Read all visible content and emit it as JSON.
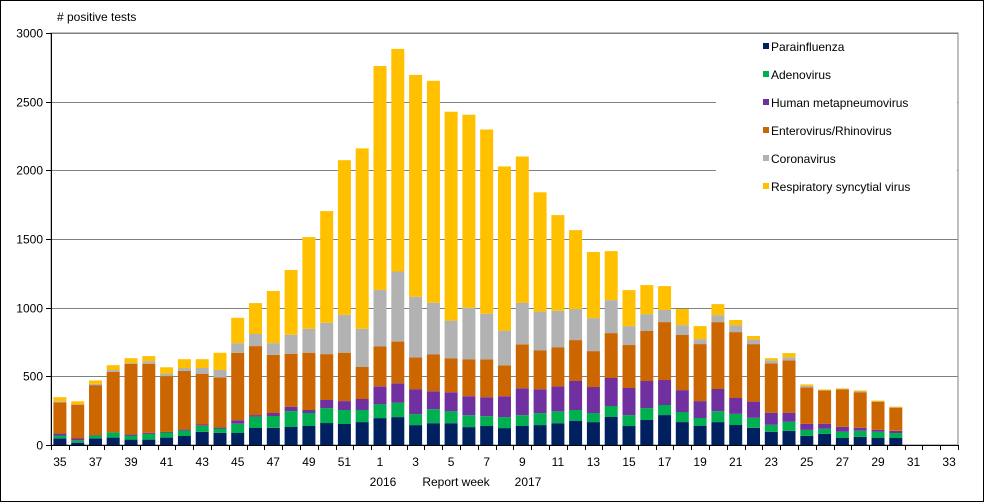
{
  "chart_data": {
    "type": "bar",
    "stacked": true,
    "ylabel": "# positive tests",
    "xlabel": "Report week",
    "year_labels": [
      "2016",
      "2017"
    ],
    "ylim": [
      0,
      3000
    ],
    "yticks": [
      0,
      500,
      1000,
      1500,
      2000,
      2500,
      3000
    ],
    "grid": true,
    "legend_position": "top-right",
    "categories": [
      "35",
      "36",
      "37",
      "38",
      "39",
      "40",
      "41",
      "42",
      "43",
      "44",
      "45",
      "46",
      "47",
      "48",
      "49",
      "50",
      "51",
      "52",
      "1",
      "2",
      "3",
      "4",
      "5",
      "6",
      "7",
      "8",
      "9",
      "10",
      "11",
      "12",
      "13",
      "14",
      "15",
      "16",
      "17",
      "18",
      "19",
      "20",
      "21",
      "22",
      "23",
      "24",
      "25",
      "26",
      "27",
      "28",
      "29",
      "30",
      "31",
      "32",
      "33"
    ],
    "xtick_labels": [
      "35",
      "37",
      "39",
      "41",
      "43",
      "45",
      "47",
      "49",
      "51",
      "1",
      "3",
      "5",
      "7",
      "9",
      "11",
      "13",
      "15",
      "17",
      "19",
      "21",
      "23",
      "25",
      "27",
      "29",
      "31",
      "33"
    ],
    "series": [
      {
        "name": "Parainfluenza",
        "color": "#002060",
        "values": [
          49,
          17,
          49,
          54,
          39,
          39,
          54,
          66,
          96,
          88,
          88,
          124,
          124,
          131,
          138,
          160,
          153,
          167,
          196,
          203,
          145,
          159,
          159,
          130,
          138,
          123,
          138,
          145,
          159,
          175,
          167,
          204,
          138,
          182,
          218,
          167,
          138,
          167,
          146,
          125,
          96,
          103,
          66,
          81,
          51,
          59,
          51,
          51,
          0,
          0,
          0
        ]
      },
      {
        "name": "Adenovirus",
        "color": "#00B050",
        "values": [
          20,
          17,
          20,
          37,
          30,
          42,
          37,
          39,
          44,
          32,
          66,
          82,
          87,
          116,
          95,
          109,
          102,
          88,
          101,
          104,
          80,
          102,
          87,
          87,
          72,
          80,
          79,
          87,
          87,
          80,
          66,
          80,
          80,
          87,
          73,
          73,
          59,
          80,
          80,
          73,
          51,
          66,
          44,
          37,
          45,
          44,
          45,
          37,
          0,
          0,
          0
        ]
      },
      {
        "name": "Human metapneumovirus",
        "color": "#7030A0",
        "values": [
          14,
          13,
          3,
          2,
          7,
          7,
          5,
          7,
          9,
          7,
          25,
          12,
          22,
          32,
          22,
          59,
          65,
          80,
          130,
          142,
          181,
          130,
          138,
          138,
          138,
          152,
          196,
          174,
          181,
          211,
          189,
          204,
          197,
          197,
          182,
          160,
          123,
          161,
          116,
          118,
          88,
          66,
          44,
          36,
          36,
          22,
          14,
          15,
          0,
          0,
          0
        ]
      },
      {
        "name": "Enterovirus/Rhinovirus",
        "color": "#CC6600",
        "values": [
          228,
          247,
          364,
          439,
          515,
          503,
          406,
          427,
          368,
          365,
          492,
          502,
          424,
          386,
          417,
          334,
          352,
          233,
          290,
          304,
          232,
          268,
          246,
          268,
          275,
          225,
          319,
          282,
          283,
          298,
          262,
          327,
          313,
          364,
          422,
          401,
          415,
          487,
          480,
          419,
          360,
          382,
          265,
          243,
          272,
          257,
          206,
          169,
          0,
          0,
          0
        ]
      },
      {
        "name": "Coronavirus",
        "color": "#B2B2B2",
        "values": [
          7,
          2,
          10,
          14,
          6,
          19,
          18,
          22,
          44,
          54,
          71,
          88,
          85,
          138,
          175,
          228,
          276,
          279,
          413,
          510,
          442,
          377,
          276,
          377,
          333,
          253,
          304,
          283,
          268,
          226,
          240,
          240,
          138,
          123,
          88,
          72,
          36,
          51,
          51,
          34,
          22,
          22,
          12,
          2,
          3,
          8,
          2,
          2,
          0,
          0,
          0
        ]
      },
      {
        "name": "Respiratory syncytial virus",
        "color": "#FFC000",
        "values": [
          30,
          22,
          24,
          35,
          35,
          37,
          46,
          64,
          64,
          125,
          184,
          225,
          379,
          471,
          667,
          813,
          1126,
          1313,
          1630,
          1621,
          1615,
          1616,
          1521,
          1405,
          1341,
          1196,
          1065,
          869,
          696,
          575,
          481,
          357,
          262,
          211,
          174,
          117,
          95,
          80,
          37,
          25,
          15,
          30,
          10,
          5,
          5,
          7,
          5,
          5,
          0,
          0,
          0
        ]
      }
    ]
  }
}
